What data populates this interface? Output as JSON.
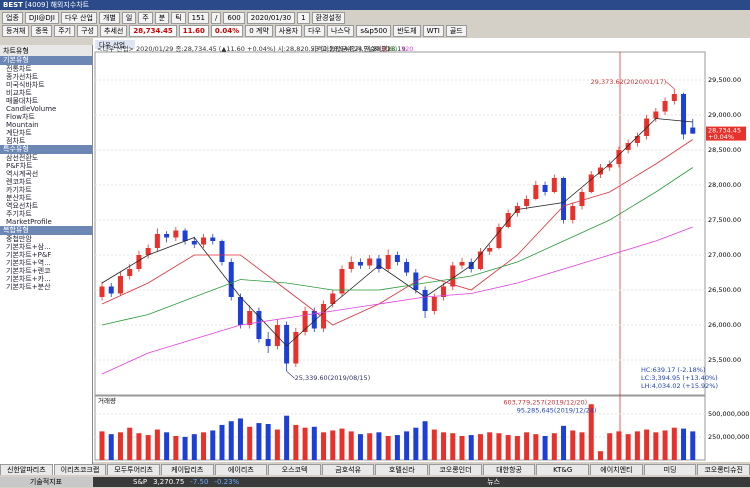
{
  "window": {
    "logo": "BEST",
    "title": "[4009] 해외지수차트"
  },
  "toolbar": {
    "row1": [
      "업종",
      "DJI@DJI",
      "다우 산업",
      "개별",
      "일",
      "주",
      "분",
      "틱",
      "151",
      "/",
      "600",
      "2020/01/30",
      "1",
      "환경설정"
    ],
    "row2": [
      "등겨채",
      "종목",
      "주기",
      "구성",
      "추세선",
      "28,734.45",
      "11.60",
      "0.04%",
      "0 계약",
      "사용자",
      "다우",
      "나스닥",
      "s&p500",
      "반도체",
      "WTI",
      "골드"
    ]
  },
  "sidebar": {
    "title": "차트유형",
    "groups": [
      {
        "name": "기본유형",
        "items": [
          "전통차트",
          "종가선차트",
          "미국식바차트",
          "비교차트",
          "매물대차트",
          "CandleVolume",
          "Flow차트",
          "Mountain",
          "계단차트",
          "점차트"
        ]
      },
      {
        "name": "특수유형",
        "items": [
          "삼선전환도",
          "P&F차트",
          "역시계곡선",
          "렌코차트",
          "카기차트",
          "분산차트",
          "역요선차트",
          "주기차트",
          "MarketProfile"
        ]
      },
      {
        "name": "복합유형",
        "items": [
          "중첩만암",
          "기본차트+삼...",
          "기본차트+P&F",
          "기본차트+역...",
          "기본차트+렌코",
          "기본차트+카...",
          "기본차트+분산"
        ]
      }
    ],
    "footer": "기술적지표"
  },
  "chart": {
    "tab": "다우 산업",
    "info": "<다우 산업> 2020/01/29 종:28,734.45 (▲11.60 +0.04%) 시:28,820.53 고:28,944.24 저:28,728.19",
    "ma_label": "가격이동평균(종가,단순이평)",
    "ylim": [
      25000,
      29900
    ],
    "yticks": [
      {
        "value": 25500,
        "label": "25,500.00"
      },
      {
        "value": 26000,
        "label": "26,000.00"
      },
      {
        "value": 26500,
        "label": "26,500.00"
      },
      {
        "value": 27000,
        "label": "27,000.00"
      },
      {
        "value": 27500,
        "label": "27,500.00"
      },
      {
        "value": 28000,
        "label": "28,000.00"
      },
      {
        "value": 28500,
        "label": "28,500.00"
      },
      {
        "value": 29000,
        "label": "29,000.00"
      },
      {
        "value": 29500,
        "label": "29,500.00"
      }
    ],
    "candles": [
      [
        26400,
        26620,
        26350,
        26550
      ],
      [
        26550,
        26600,
        26400,
        26450
      ],
      [
        26450,
        26760,
        26420,
        26700
      ],
      [
        26700,
        26870,
        26650,
        26800
      ],
      [
        26800,
        27060,
        26760,
        27000
      ],
      [
        27000,
        27150,
        26950,
        27100
      ],
      [
        27100,
        27380,
        27050,
        27300
      ],
      [
        27300,
        27340,
        27180,
        27250
      ],
      [
        27250,
        27400,
        27200,
        27350
      ],
      [
        27350,
        27380,
        27150,
        27200
      ],
      [
        27200,
        27260,
        27100,
        27150
      ],
      [
        27150,
        27300,
        27100,
        27250
      ],
      [
        27250,
        27300,
        27150,
        27200
      ],
      [
        27200,
        27220,
        26850,
        26900
      ],
      [
        26900,
        26950,
        26350,
        26400
      ],
      [
        26400,
        26450,
        25950,
        26000
      ],
      [
        26000,
        26280,
        25950,
        26200
      ],
      [
        26200,
        26250,
        25750,
        25800
      ],
      [
        25800,
        25900,
        25600,
        25700
      ],
      [
        25700,
        26080,
        25650,
        26000
      ],
      [
        26000,
        26050,
        25339.6,
        25450
      ],
      [
        25450,
        25960,
        25400,
        25900
      ],
      [
        25900,
        26260,
        25850,
        26200
      ],
      [
        26200,
        26250,
        25900,
        25950
      ],
      [
        25950,
        26350,
        25900,
        26300
      ],
      [
        26300,
        26500,
        26250,
        26450
      ],
      [
        26450,
        26850,
        26400,
        26800
      ],
      [
        26800,
        26980,
        26750,
        26900
      ],
      [
        26900,
        26950,
        26800,
        26850
      ],
      [
        26850,
        27000,
        26800,
        26950
      ],
      [
        26950,
        27000,
        26750,
        26800
      ],
      [
        26800,
        27080,
        26760,
        27000
      ],
      [
        27000,
        27050,
        26850,
        26900
      ],
      [
        26900,
        26950,
        26700,
        26750
      ],
      [
        26750,
        26800,
        26450,
        26500
      ],
      [
        26500,
        26550,
        26100,
        26200
      ],
      [
        26200,
        26450,
        26150,
        26400
      ],
      [
        26400,
        26600,
        26350,
        26550
      ],
      [
        26550,
        26900,
        26500,
        26850
      ],
      [
        26850,
        26960,
        26800,
        26900
      ],
      [
        26900,
        26950,
        26750,
        26800
      ],
      [
        26800,
        27100,
        26780,
        27050
      ],
      [
        27050,
        27150,
        27000,
        27100
      ],
      [
        27100,
        27450,
        27080,
        27400
      ],
      [
        27400,
        27650,
        27380,
        27600
      ],
      [
        27600,
        27750,
        27550,
        27700
      ],
      [
        27700,
        27850,
        27650,
        27800
      ],
      [
        27800,
        28060,
        27780,
        28000
      ],
      [
        28000,
        28050,
        27850,
        27900
      ],
      [
        27900,
        28150,
        27880,
        28100
      ],
      [
        28100,
        28120,
        27450,
        27500
      ],
      [
        27500,
        27750,
        27450,
        27700
      ],
      [
        27700,
        27950,
        27650,
        27900
      ],
      [
        27900,
        28200,
        27880,
        28150
      ],
      [
        28150,
        28300,
        28100,
        28250
      ],
      [
        28250,
        28350,
        28200,
        28300
      ],
      [
        28300,
        28550,
        28250,
        28500
      ],
      [
        28500,
        28650,
        28450,
        28600
      ],
      [
        28600,
        28750,
        28550,
        28700
      ],
      [
        28700,
        29000,
        28650,
        28950
      ],
      [
        28950,
        29100,
        28900,
        29050
      ],
      [
        29050,
        29250,
        29000,
        29200
      ],
      [
        29200,
        29373.62,
        29150,
        29300
      ],
      [
        29300,
        29320,
        28650,
        28722.85
      ],
      [
        28820.53,
        28944.24,
        28728.19,
        28734.45
      ]
    ],
    "up_color": "#e8312a",
    "down_color": "#1c3fd8",
    "ma_index": [
      0,
      5,
      10,
      15,
      20,
      25,
      30,
      35,
      40,
      45,
      50,
      55,
      60,
      64
    ],
    "ma": [
      {
        "name": "5",
        "color": "#222222",
        "values": [
          26600,
          27000,
          27250,
          26400,
          25700,
          26300,
          26850,
          26400,
          26850,
          27650,
          27750,
          28300,
          28950,
          28900
        ]
      },
      {
        "name": "20",
        "color": "#e0303a",
        "values": [
          26300,
          26600,
          27000,
          27000,
          26500,
          26000,
          26300,
          26700,
          26500,
          27000,
          27700,
          27900,
          28300,
          28650
        ]
      },
      {
        "name": "60",
        "color": "#2a9a3a",
        "values": [
          26000,
          26150,
          26400,
          26650,
          26600,
          26500,
          26500,
          26600,
          26700,
          26900,
          27200,
          27500,
          27900,
          28250
        ]
      },
      {
        "name": "120",
        "color": "#e040e0",
        "values": [
          25300,
          25600,
          25800,
          26000,
          26100,
          26200,
          26300,
          26400,
          26450,
          26600,
          26800,
          27000,
          27200,
          27400
        ]
      }
    ],
    "high_note": "29,373.62(2020/01/17)",
    "low_note": "25,339.60(2019/08/15)",
    "stats": [
      "HC:639.17 (-2.18%)",
      "LC:3,394.95 (+13.40%)",
      "LH:4,034.02 (+15.92%)"
    ],
    "last_price": "28,734.45",
    "last_change": "+0.04%",
    "volume_title": "거래량",
    "volume_max_note": "603,779,257(2019/12/20)",
    "volume_min_note": "95,285,645(2019/12/24)",
    "vlim": [
      0,
      650000000
    ],
    "vticks": [
      {
        "value": 250000000,
        "label": "250,000,000"
      },
      {
        "value": 500000000,
        "label": "500,000,000"
      }
    ],
    "volume": [
      310000000,
      280000000,
      300000000,
      350000000,
      290000000,
      270000000,
      330000000,
      300000000,
      260000000,
      250000000,
      280000000,
      300000000,
      320000000,
      380000000,
      420000000,
      450000000,
      360000000,
      400000000,
      390000000,
      330000000,
      480000000,
      380000000,
      350000000,
      360000000,
      300000000,
      320000000,
      340000000,
      310000000,
      280000000,
      290000000,
      300000000,
      260000000,
      270000000,
      310000000,
      350000000,
      420000000,
      330000000,
      300000000,
      290000000,
      260000000,
      270000000,
      280000000,
      300000000,
      290000000,
      270000000,
      260000000,
      300000000,
      280000000,
      260000000,
      290000000,
      370000000,
      320000000,
      300000000,
      603779257,
      95285645,
      290000000,
      310000000,
      280000000,
      310000000,
      330000000,
      300000000,
      320000000,
      350000000,
      340000000,
      310000000
    ]
  },
  "stock_tabs": [
    "신한알파리츠",
    "이리츠코크랩",
    "모두투어리츠",
    "케이탑리츠",
    "에이리츠",
    "오스코텍",
    "금호석유",
    "호텔신라",
    "코오롱인더",
    "대한항공",
    "KT&G",
    "에이치엔티",
    "미딩",
    "코오롱티슈진"
  ],
  "status": {
    "name": "S&P",
    "price": "3,270.75",
    "change": "-7.50",
    "rate": "-0.23%",
    "news": "뉴스"
  }
}
